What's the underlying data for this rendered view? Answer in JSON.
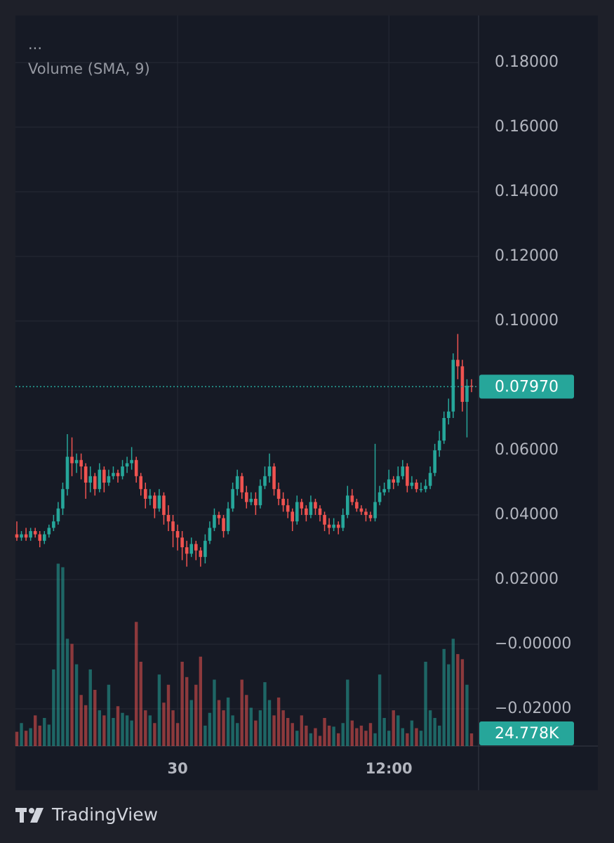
{
  "chart_data": {
    "type": "candlestick",
    "legend_items": [
      "...",
      "Volume (SMA, 9)"
    ],
    "brand": "TradingView",
    "up_color": "#26a69a",
    "down_color": "#ef5350",
    "categories": [
      null,
      null,
      null,
      null,
      null,
      null,
      null,
      null,
      null,
      null,
      null,
      null,
      null,
      null,
      null,
      null,
      null,
      null,
      null,
      null,
      null,
      null,
      null,
      null,
      null,
      null,
      null,
      null,
      null,
      null,
      null,
      null,
      null,
      null,
      null,
      "30",
      null,
      null,
      null,
      null,
      null,
      null,
      null,
      null,
      null,
      null,
      null,
      null,
      null,
      null,
      null,
      null,
      null,
      null,
      null,
      null,
      null,
      null,
      null,
      null,
      null,
      null,
      null,
      null,
      null,
      null,
      null,
      null,
      null,
      null,
      null,
      null,
      null,
      null,
      null,
      null,
      null,
      null,
      null,
      null,
      null,
      "12:00",
      null,
      null,
      null,
      null,
      null,
      null,
      null,
      null,
      null,
      null,
      null,
      null,
      null,
      null,
      null,
      null,
      null,
      null
    ],
    "ohlc": [
      [
        0.034,
        0.038,
        0.032,
        0.033
      ],
      [
        0.033,
        0.035,
        0.032,
        0.034
      ],
      [
        0.034,
        0.036,
        0.032,
        0.033
      ],
      [
        0.033,
        0.036,
        0.032,
        0.035
      ],
      [
        0.035,
        0.036,
        0.033,
        0.034
      ],
      [
        0.034,
        0.035,
        0.03,
        0.032
      ],
      [
        0.032,
        0.035,
        0.031,
        0.034
      ],
      [
        0.034,
        0.037,
        0.033,
        0.036
      ],
      [
        0.036,
        0.04,
        0.035,
        0.038
      ],
      [
        0.038,
        0.044,
        0.037,
        0.042
      ],
      [
        0.042,
        0.05,
        0.04,
        0.048
      ],
      [
        0.048,
        0.065,
        0.046,
        0.058
      ],
      [
        0.058,
        0.064,
        0.052,
        0.056
      ],
      [
        0.056,
        0.059,
        0.053,
        0.057
      ],
      [
        0.057,
        0.059,
        0.051,
        0.055
      ],
      [
        0.055,
        0.056,
        0.045,
        0.05
      ],
      [
        0.05,
        0.055,
        0.047,
        0.052
      ],
      [
        0.052,
        0.053,
        0.046,
        0.048
      ],
      [
        0.048,
        0.056,
        0.047,
        0.054
      ],
      [
        0.054,
        0.055,
        0.047,
        0.05
      ],
      [
        0.05,
        0.054,
        0.049,
        0.052
      ],
      [
        0.052,
        0.055,
        0.051,
        0.053
      ],
      [
        0.053,
        0.054,
        0.05,
        0.052
      ],
      [
        0.052,
        0.057,
        0.051,
        0.055
      ],
      [
        0.055,
        0.058,
        0.053,
        0.056
      ],
      [
        0.056,
        0.061,
        0.054,
        0.057
      ],
      [
        0.057,
        0.058,
        0.05,
        0.052
      ],
      [
        0.052,
        0.053,
        0.046,
        0.048
      ],
      [
        0.048,
        0.05,
        0.042,
        0.045
      ],
      [
        0.045,
        0.048,
        0.043,
        0.046
      ],
      [
        0.046,
        0.047,
        0.039,
        0.042
      ],
      [
        0.042,
        0.048,
        0.041,
        0.046
      ],
      [
        0.046,
        0.047,
        0.037,
        0.04
      ],
      [
        0.04,
        0.043,
        0.035,
        0.038
      ],
      [
        0.038,
        0.04,
        0.03,
        0.035
      ],
      [
        0.035,
        0.037,
        0.029,
        0.033
      ],
      [
        0.033,
        0.035,
        0.026,
        0.03
      ],
      [
        0.03,
        0.032,
        0.024,
        0.028
      ],
      [
        0.028,
        0.033,
        0.027,
        0.031
      ],
      [
        0.031,
        0.032,
        0.026,
        0.029
      ],
      [
        0.029,
        0.03,
        0.024,
        0.027
      ],
      [
        0.027,
        0.034,
        0.025,
        0.032
      ],
      [
        0.032,
        0.038,
        0.031,
        0.036
      ],
      [
        0.036,
        0.042,
        0.035,
        0.04
      ],
      [
        0.04,
        0.041,
        0.037,
        0.039
      ],
      [
        0.039,
        0.04,
        0.033,
        0.035
      ],
      [
        0.035,
        0.044,
        0.034,
        0.042
      ],
      [
        0.042,
        0.05,
        0.041,
        0.048
      ],
      [
        0.048,
        0.054,
        0.046,
        0.052
      ],
      [
        0.052,
        0.053,
        0.045,
        0.047
      ],
      [
        0.047,
        0.049,
        0.042,
        0.044
      ],
      [
        0.044,
        0.047,
        0.043,
        0.045
      ],
      [
        0.045,
        0.047,
        0.04,
        0.043
      ],
      [
        0.043,
        0.051,
        0.042,
        0.049
      ],
      [
        0.049,
        0.055,
        0.048,
        0.052
      ],
      [
        0.052,
        0.059,
        0.05,
        0.055
      ],
      [
        0.055,
        0.056,
        0.046,
        0.048
      ],
      [
        0.048,
        0.05,
        0.043,
        0.045
      ],
      [
        0.045,
        0.047,
        0.041,
        0.043
      ],
      [
        0.043,
        0.045,
        0.039,
        0.041
      ],
      [
        0.041,
        0.042,
        0.035,
        0.038
      ],
      [
        0.038,
        0.046,
        0.037,
        0.044
      ],
      [
        0.044,
        0.045,
        0.04,
        0.042
      ],
      [
        0.042,
        0.043,
        0.038,
        0.04
      ],
      [
        0.04,
        0.046,
        0.039,
        0.044
      ],
      [
        0.044,
        0.045,
        0.04,
        0.042
      ],
      [
        0.042,
        0.043,
        0.038,
        0.04
      ],
      [
        0.04,
        0.041,
        0.035,
        0.037
      ],
      [
        0.037,
        0.039,
        0.034,
        0.036
      ],
      [
        0.036,
        0.039,
        0.035,
        0.037
      ],
      [
        0.037,
        0.038,
        0.034,
        0.036
      ],
      [
        0.036,
        0.042,
        0.035,
        0.04
      ],
      [
        0.04,
        0.049,
        0.039,
        0.046
      ],
      [
        0.046,
        0.048,
        0.043,
        0.044
      ],
      [
        0.044,
        0.045,
        0.041,
        0.042
      ],
      [
        0.042,
        0.043,
        0.04,
        0.041
      ],
      [
        0.041,
        0.042,
        0.038,
        0.04
      ],
      [
        0.04,
        0.041,
        0.038,
        0.039
      ],
      [
        0.039,
        0.062,
        0.038,
        0.044
      ],
      [
        0.044,
        0.049,
        0.043,
        0.047
      ],
      [
        0.047,
        0.05,
        0.046,
        0.048
      ],
      [
        0.048,
        0.054,
        0.047,
        0.051
      ],
      [
        0.051,
        0.052,
        0.048,
        0.05
      ],
      [
        0.05,
        0.055,
        0.049,
        0.052
      ],
      [
        0.052,
        0.057,
        0.051,
        0.055
      ],
      [
        0.055,
        0.056,
        0.047,
        0.049
      ],
      [
        0.049,
        0.052,
        0.048,
        0.05
      ],
      [
        0.05,
        0.051,
        0.047,
        0.048
      ],
      [
        0.048,
        0.05,
        0.047,
        0.048
      ],
      [
        0.048,
        0.051,
        0.047,
        0.049
      ],
      [
        0.049,
        0.055,
        0.048,
        0.053
      ],
      [
        0.053,
        0.062,
        0.052,
        0.06
      ],
      [
        0.06,
        0.066,
        0.058,
        0.063
      ],
      [
        0.063,
        0.072,
        0.062,
        0.07
      ],
      [
        0.07,
        0.076,
        0.068,
        0.072
      ],
      [
        0.072,
        0.09,
        0.07,
        0.088
      ],
      [
        0.088,
        0.096,
        0.082,
        0.086
      ],
      [
        0.086,
        0.088,
        0.072,
        0.075
      ],
      [
        0.075,
        0.082,
        0.064,
        0.08
      ],
      [
        0.08,
        0.082,
        0.078,
        0.0797
      ]
    ],
    "volume": [
      28000,
      45000,
      30000,
      35000,
      60000,
      40000,
      55000,
      42000,
      150000,
      357000,
      350000,
      210000,
      200000,
      160000,
      100000,
      80000,
      150000,
      110000,
      70000,
      60000,
      120000,
      55000,
      78000,
      65000,
      60000,
      50000,
      243000,
      165000,
      70000,
      60000,
      45000,
      140000,
      85000,
      120000,
      70000,
      45000,
      165000,
      135000,
      90000,
      120000,
      175000,
      40000,
      65000,
      130000,
      90000,
      70000,
      95000,
      60000,
      45000,
      130000,
      100000,
      75000,
      50000,
      70000,
      125000,
      90000,
      60000,
      95000,
      70000,
      55000,
      45000,
      30000,
      60000,
      40000,
      25000,
      35000,
      20000,
      55000,
      40000,
      38000,
      25000,
      45000,
      130000,
      50000,
      35000,
      40000,
      30000,
      45000,
      25000,
      140000,
      55000,
      30000,
      70000,
      60000,
      35000,
      25000,
      50000,
      35000,
      30000,
      165000,
      70000,
      55000,
      40000,
      190000,
      160000,
      210000,
      180000,
      170000,
      120000,
      24778
    ],
    "volume_ylim": [
      0,
      1430000
    ],
    "last_price_label": {
      "value": 0.0797,
      "label": "0.07970"
    },
    "last_volume_label": {
      "value": 24778,
      "label": "24.778K"
    },
    "ylim": [
      -0.03152,
      0.19457
    ],
    "yticks": [
      {
        "value": 0.18,
        "label": "0.18000"
      },
      {
        "value": 0.16,
        "label": "0.16000"
      },
      {
        "value": 0.14,
        "label": "0.14000"
      },
      {
        "value": 0.12,
        "label": "0.12000"
      },
      {
        "value": 0.1,
        "label": "0.10000"
      },
      {
        "value": 0.06,
        "label": "0.06000"
      },
      {
        "value": 0.04,
        "label": "0.04000"
      },
      {
        "value": 0.02,
        "label": "0.02000"
      },
      {
        "value": 0,
        "label": "−0.00000"
      },
      {
        "value": -0.02,
        "label": "−0.02000"
      }
    ],
    "grid": true
  }
}
